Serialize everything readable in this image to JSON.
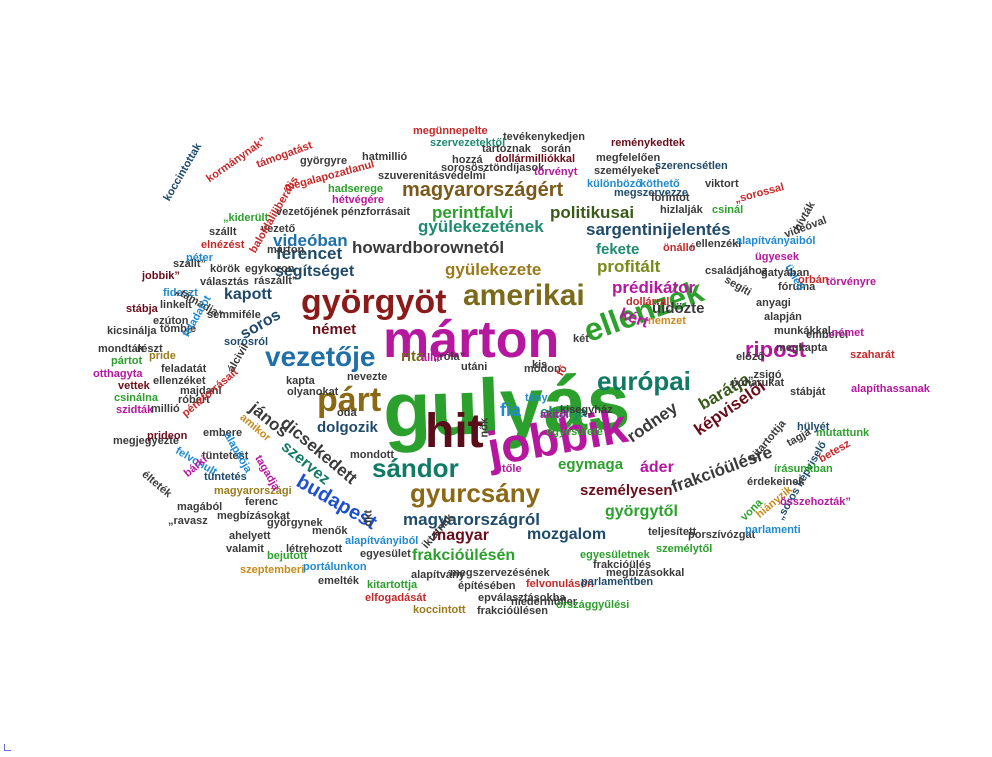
{
  "words": [
    {
      "text": "gulyás",
      "color": "#2ca02c"
    },
    {
      "text": "márton",
      "color": "#b5179e"
    },
    {
      "text": "jobbik",
      "color": "#b5179e"
    },
    {
      "text": "hit",
      "color": "#5a0d1a"
    },
    {
      "text": "párt",
      "color": "#8b6914"
    },
    {
      "text": "györgyöt",
      "color": "#8b1a1a"
    },
    {
      "text": "amerikai",
      "color": "#7a6a1a"
    },
    {
      "text": "vezetője",
      "color": "#1f6fa8"
    },
    {
      "text": "gyurcsány",
      "color": "#8b6914"
    },
    {
      "text": "sándor",
      "color": "#117a65"
    },
    {
      "text": "ellenzék",
      "color": "#2ca02c"
    },
    {
      "text": "európai",
      "color": "#117a65"
    },
    {
      "text": "ripost",
      "color": "#b5179e"
    },
    {
      "text": "budapest",
      "color": "#1f4fd1"
    },
    {
      "text": "magyarországért",
      "color": "#7a5a1a"
    },
    {
      "text": "gyülekezetének",
      "color": "#1f8a70"
    },
    {
      "text": "perintfalvi",
      "color": "#2ca02c"
    },
    {
      "text": "politikusai",
      "color": "#3a5a1a"
    },
    {
      "text": "videóban",
      "color": "#1f6fa8"
    },
    {
      "text": "ferencet",
      "color": "#1f4a6a"
    },
    {
      "text": "howardborownetól",
      "color": "#3a3a3a"
    },
    {
      "text": "sargentinijelentés",
      "color": "#1f4a6a"
    },
    {
      "text": "fekete",
      "color": "#1f8a70"
    },
    {
      "text": "gyülekezete",
      "color": "#9a7a1a"
    },
    {
      "text": "profitált",
      "color": "#7a8a1a"
    },
    {
      "text": "prédikátor",
      "color": "#b5179e"
    },
    {
      "text": "segítséget",
      "color": "#1f4a6a"
    },
    {
      "text": "kapott",
      "color": "#1f4a6a"
    },
    {
      "text": "soros",
      "color": "#1f4a6a"
    },
    {
      "text": "német",
      "color": "#6a0d1a"
    },
    {
      "text": "rita",
      "color": "#7a6a1a"
    },
    {
      "text": "jános",
      "color": "#3a3a3a"
    },
    {
      "text": "dicsekedett",
      "color": "#3a3a3a"
    },
    {
      "text": "szervez",
      "color": "#117a65"
    },
    {
      "text": "dolgozik",
      "color": "#1f4a6a"
    },
    {
      "text": "fia",
      "color": "#1f8ad1"
    },
    {
      "text": "elzárja",
      "color": "#1f8a70"
    },
    {
      "text": "rodney",
      "color": "#3a3a3a"
    },
    {
      "text": "barátja",
      "color": "#3a5a1a"
    },
    {
      "text": "képviselői",
      "color": "#6a0d1a"
    },
    {
      "text": "frakcióülésre",
      "color": "#3a3a3a"
    },
    {
      "text": "áder",
      "color": "#b5179e"
    },
    {
      "text": "egymaga",
      "color": "#2ca02c"
    },
    {
      "text": "személyesen",
      "color": "#6a0d1a"
    },
    {
      "text": "magyarországról",
      "color": "#1f4a6a"
    },
    {
      "text": "györgytől",
      "color": "#2ca02c"
    },
    {
      "text": "magyar",
      "color": "#6a0d1a"
    },
    {
      "text": "mozgalom",
      "color": "#1f4a6a"
    },
    {
      "text": "frakcióülésén",
      "color": "#2ca02c"
    },
    {
      "text": "üldözte",
      "color": "#3a3a3a"
    },
    {
      "text": "kért",
      "color": "#b5179e"
    },
    {
      "text": "megünnepelte",
      "color": "#c62828"
    },
    {
      "text": "tevékenykedjen",
      "color": "#3a3a3a"
    },
    {
      "text": "szervezetektől",
      "color": "#1f8a70"
    },
    {
      "text": "reménykedtek",
      "color": "#6a0d1a"
    },
    {
      "text": "tartoznak",
      "color": "#3a3a3a"
    },
    {
      "text": "során",
      "color": "#3a3a3a"
    },
    {
      "text": "dollármilliókkal",
      "color": "#6a0d1a"
    },
    {
      "text": "megfelelően",
      "color": "#3a3a3a"
    },
    {
      "text": "szerencsétlen",
      "color": "#1f4a6a"
    },
    {
      "text": "sorosösztöndíjasok",
      "color": "#3a3a3a"
    },
    {
      "text": "szuverenitásvédelmi",
      "color": "#3a3a3a"
    },
    {
      "text": "hatmillió",
      "color": "#3a3a3a"
    },
    {
      "text": "törvényt",
      "color": "#b5179e"
    },
    {
      "text": "györgyre",
      "color": "#3a3a3a"
    },
    {
      "text": "hozzá",
      "color": "#3a3a3a"
    },
    {
      "text": "személyeket",
      "color": "#3a3a3a"
    },
    {
      "text": "különböző",
      "color": "#1f8ad1"
    },
    {
      "text": "köthető",
      "color": "#1f8ad1"
    },
    {
      "text": "megszervezze",
      "color": "#1f4a6a"
    },
    {
      "text": "viktort",
      "color": "#3a3a3a"
    },
    {
      "text": "forintot",
      "color": "#3a3a3a"
    },
    {
      "text": "„sorossal",
      "color": "#c62828"
    },
    {
      "text": "hizlalják",
      "color": "#3a3a3a"
    },
    {
      "text": "csinál",
      "color": "#2ca02c"
    },
    {
      "text": "hadserege",
      "color": "#2ca02c"
    },
    {
      "text": "hétvégére",
      "color": "#b5179e"
    },
    {
      "text": "pénzforrásait",
      "color": "#3a3a3a"
    },
    {
      "text": "megalapozatlanul",
      "color": "#c62828"
    },
    {
      "text": "kormánynak”",
      "color": "#c62828"
    },
    {
      "text": "támogatást",
      "color": "#c62828"
    },
    {
      "text": "„kiderült",
      "color": "#2ca02c"
    },
    {
      "text": "vezetőjének",
      "color": "#3a3a3a"
    },
    {
      "text": "koccintottak",
      "color": "#1f4a6a"
    },
    {
      "text": "szállt",
      "color": "#3a3a3a"
    },
    {
      "text": "vezető",
      "color": "#3a3a3a"
    },
    {
      "text": "elnézést",
      "color": "#c62828"
    },
    {
      "text": "baloldaliliberális",
      "color": "#c62828"
    },
    {
      "text": "márton",
      "color": "#3a3a3a"
    },
    {
      "text": "szállt”",
      "color": "#3a3a3a"
    },
    {
      "text": "péter",
      "color": "#1f8ad1"
    },
    {
      "text": "körök",
      "color": "#3a3a3a"
    },
    {
      "text": "egykoron",
      "color": "#3a3a3a"
    },
    {
      "text": "választás",
      "color": "#3a3a3a"
    },
    {
      "text": "rászállt”",
      "color": "#3a3a3a"
    },
    {
      "text": "jobbik”",
      "color": "#6a0d1a"
    },
    {
      "text": "fideszt",
      "color": "#1f8ad1"
    },
    {
      "text": "„támadja”",
      "color": "#3a3a3a"
    },
    {
      "text": "stábja",
      "color": "#6a0d1a"
    },
    {
      "text": "linkelt",
      "color": "#3a3a3a"
    },
    {
      "text": "ezúton",
      "color": "#3a3a3a"
    },
    {
      "text": "semmiféle",
      "color": "#3a3a3a"
    },
    {
      "text": "kicsinálja",
      "color": "#3a3a3a"
    },
    {
      "text": "tömbje",
      "color": "#3a3a3a"
    },
    {
      "text": "feladatot",
      "color": "#1f8ad1"
    },
    {
      "text": "mondták",
      "color": "#3a3a3a"
    },
    {
      "text": "részt",
      "color": "#3a3a3a"
    },
    {
      "text": "sorosról",
      "color": "#1f4a6a"
    },
    {
      "text": "pártot",
      "color": "#2ca02c"
    },
    {
      "text": "pride",
      "color": "#9a7a1a"
    },
    {
      "text": "otthagyta",
      "color": "#b5179e"
    },
    {
      "text": "feladatát",
      "color": "#3a3a3a"
    },
    {
      "text": "ellenzéket",
      "color": "#3a3a3a"
    },
    {
      "text": "vettek",
      "color": "#6a0d1a"
    },
    {
      "text": "majdani",
      "color": "#3a3a3a"
    },
    {
      "text": "csinálna",
      "color": "#2ca02c"
    },
    {
      "text": "róbert",
      "color": "#3a3a3a"
    },
    {
      "text": "szidták",
      "color": "#b5179e"
    },
    {
      "text": "millió",
      "color": "#3a3a3a"
    },
    {
      "text": "pénzforrásait",
      "color": "#c62828"
    },
    {
      "text": "megjegyezte",
      "color": "#3a3a3a"
    },
    {
      "text": "prideon",
      "color": "#6a0d1a"
    },
    {
      "text": "embere",
      "color": "#3a3a3a"
    },
    {
      "text": "tüntetést",
      "color": "#3a3a3a"
    },
    {
      "text": "felvonult",
      "color": "#1f8ad1"
    },
    {
      "text": "élteték",
      "color": "#3a3a3a"
    },
    {
      "text": "bárki",
      "color": "#b5179e"
    },
    {
      "text": "tüntetés",
      "color": "#1f4a6a"
    },
    {
      "text": "magyarországi",
      "color": "#9a7a1a"
    },
    {
      "text": "magából",
      "color": "#3a3a3a"
    },
    {
      "text": "ferenc",
      "color": "#3a3a3a"
    },
    {
      "text": "„ravasz",
      "color": "#3a3a3a"
    },
    {
      "text": "megbízásokat",
      "color": "#3a3a3a"
    },
    {
      "text": "györgynek",
      "color": "#3a3a3a"
    },
    {
      "text": "ahelyett",
      "color": "#3a3a3a"
    },
    {
      "text": "menők",
      "color": "#3a3a3a"
    },
    {
      "text": "valamit",
      "color": "#3a3a3a"
    },
    {
      "text": "létrehozott",
      "color": "#3a3a3a"
    },
    {
      "text": "bejutott",
      "color": "#2ca02c"
    },
    {
      "text": "szeptemberi",
      "color": "#c98a1a"
    },
    {
      "text": "portálunkon",
      "color": "#1f8ad1"
    },
    {
      "text": "emelték",
      "color": "#3a3a3a"
    },
    {
      "text": "kitartottja",
      "color": "#2ca02c"
    },
    {
      "text": "elfogadását",
      "color": "#c62828"
    },
    {
      "text": "egyesület",
      "color": "#3a3a3a"
    },
    {
      "text": "alapítványiból",
      "color": "#1f8ad1"
    },
    {
      "text": "alapítvány",
      "color": "#3a3a3a"
    },
    {
      "text": "megszervezésének",
      "color": "#3a3a3a"
    },
    {
      "text": "építésében",
      "color": "#3a3a3a"
    },
    {
      "text": "epválasztásokba",
      "color": "#3a3a3a"
    },
    {
      "text": "felvonuláson",
      "color": "#c62828"
    },
    {
      "text": "niedermüller",
      "color": "#3a3a3a"
    },
    {
      "text": "koccintott",
      "color": "#9a7a1a"
    },
    {
      "text": "frakcióülésen",
      "color": "#3a3a3a"
    },
    {
      "text": "országgyűlési",
      "color": "#2ca02c"
    },
    {
      "text": "parlamentben",
      "color": "#1f4a6a"
    },
    {
      "text": "megbízásokkal",
      "color": "#3a3a3a"
    },
    {
      "text": "frakcióülés",
      "color": "#3a3a3a"
    },
    {
      "text": "egyesületnek",
      "color": "#2ca02c"
    },
    {
      "text": "személytől",
      "color": "#2ca02c"
    },
    {
      "text": "porszívózgat",
      "color": "#3a3a3a"
    },
    {
      "text": "teljesített",
      "color": "#3a3a3a"
    },
    {
      "text": "parlamenti",
      "color": "#1f8ad1"
    },
    {
      "text": "vona",
      "color": "#2ca02c"
    },
    {
      "text": "hiányzik",
      "color": "#c98a1a"
    },
    {
      "text": "„soros képviselő",
      "color": "#1f4a6a"
    },
    {
      "text": "érdekeinek",
      "color": "#3a3a3a"
    },
    {
      "text": "kitartottja",
      "color": "#3a3a3a"
    },
    {
      "text": "írásunkban",
      "color": "#2ca02c"
    },
    {
      "text": "tagja",
      "color": "#3a3a3a"
    },
    {
      "text": "mutattunk",
      "color": "#2ca02c"
    },
    {
      "text": "betesz",
      "color": "#c62828"
    },
    {
      "text": "hülyét",
      "color": "#1f4a6a"
    },
    {
      "text": "összehozták”",
      "color": "#b5179e"
    },
    {
      "text": "stábját",
      "color": "#3a3a3a"
    },
    {
      "text": "poharukat",
      "color": "#3a3a3a"
    },
    {
      "text": "„zsigó",
      "color": "#3a3a3a"
    },
    {
      "text": "alapíthassanak",
      "color": "#b5179e"
    },
    {
      "text": "előző",
      "color": "#3a3a3a"
    },
    {
      "text": "szaharát",
      "color": "#c62828"
    },
    {
      "text": "munkákkal",
      "color": "#3a3a3a"
    },
    {
      "text": "emberei",
      "color": "#3a3a3a"
    },
    {
      "text": "„német",
      "color": "#b5179e"
    },
    {
      "text": "alapján",
      "color": "#3a3a3a"
    },
    {
      "text": "anyagi",
      "color": "#3a3a3a"
    },
    {
      "text": "megkapta",
      "color": "#3a3a3a"
    },
    {
      "text": "fóruma",
      "color": "#3a3a3a"
    },
    {
      "text": "segíti",
      "color": "#3a3a3a"
    },
    {
      "text": "üzleti",
      "color": "#1f8ad1"
    },
    {
      "text": "törvényre",
      "color": "#b5179e"
    },
    {
      "text": "videóval",
      "color": "#3a3a3a"
    },
    {
      "text": "hívták",
      "color": "#3a3a3a"
    },
    {
      "text": "orbán",
      "color": "#c62828"
    },
    {
      "text": "ügyesek",
      "color": "#b5179e"
    },
    {
      "text": "gatyában",
      "color": "#3a3a3a"
    },
    {
      "text": "családjához",
      "color": "#3a3a3a"
    },
    {
      "text": "önálló",
      "color": "#c62828"
    },
    {
      "text": "„ellenzéki",
      "color": "#3a3a3a"
    },
    {
      "text": "alapítványaiból",
      "color": "#1f8ad1"
    },
    {
      "text": "nemzet",
      "color": "#c98a1a"
    },
    {
      "text": "dollárral",
      "color": "#c62828"
    },
    {
      "text": "két",
      "color": "#3a3a3a"
    },
    {
      "text": "kis",
      "color": "#3a3a3a"
    },
    {
      "text": "módon",
      "color": "#3a3a3a"
    },
    {
      "text": "utáni",
      "color": "#3a3a3a"
    },
    {
      "text": "„róla”",
      "color": "#3a3a3a"
    },
    {
      "text": "állít",
      "color": "#b5179e"
    },
    {
      "text": "fő",
      "color": "#c62828"
    },
    {
      "text": "tény",
      "color": "#1f8ad1"
    },
    {
      "text": "kisegyház",
      "color": "#3a3a3a"
    },
    {
      "text": "akitől",
      "color": "#b5179e"
    },
    {
      "text": "nők",
      "color": "#3a3a3a"
    },
    {
      "text": "tőle",
      "color": "#b5179e"
    },
    {
      "text": "egyesülete",
      "color": "#2ca02c"
    },
    {
      "text": "kapta",
      "color": "#3a3a3a"
    },
    {
      "text": "olyanokat",
      "color": "#3a3a3a"
    },
    {
      "text": "oda",
      "color": "#3a3a3a"
    },
    {
      "text": "mondott",
      "color": "#3a3a3a"
    },
    {
      "text": "dkt",
      "color": "#3a3a3a"
    },
    {
      "text": "iktatnák",
      "color": "#3a3a3a"
    },
    {
      "text": "nevezte",
      "color": "#3a3a3a"
    },
    {
      "text": "álcivil",
      "color": "#3a3a3a"
    },
    {
      "text": "amikor",
      "color": "#c98a1a"
    },
    {
      "text": "alapítója",
      "color": "#1f8ad1"
    },
    {
      "text": "tagadja",
      "color": "#b5179e"
    },
    {
      "text": "politikusok",
      "color": "#c62828"
    }
  ]
}
